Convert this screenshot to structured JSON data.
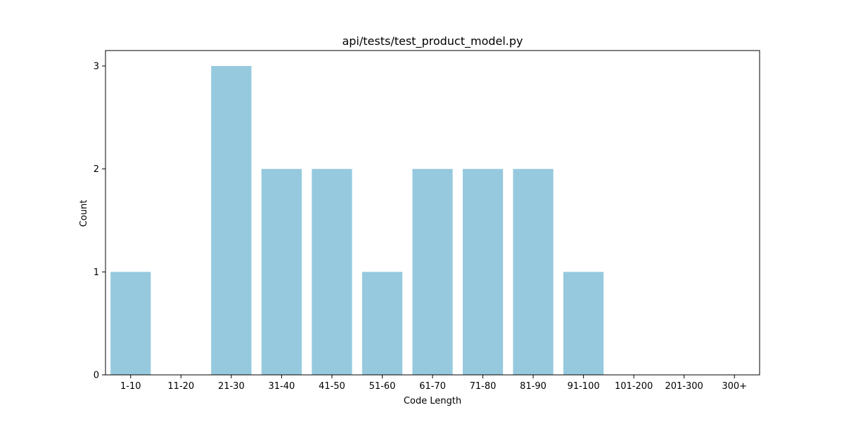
{
  "chart_data": {
    "type": "bar",
    "title": "api/tests/test_product_model.py",
    "xlabel": "Code Length",
    "ylabel": "Count",
    "categories": [
      "1-10",
      "11-20",
      "21-30",
      "31-40",
      "41-50",
      "51-60",
      "61-70",
      "71-80",
      "81-90",
      "91-100",
      "101-200",
      "201-300",
      "300+"
    ],
    "values": [
      1,
      0,
      3,
      2,
      2,
      1,
      2,
      2,
      2,
      1,
      0,
      0,
      0
    ],
    "ylim": [
      0,
      3.15
    ],
    "yticks": [
      0,
      1,
      2,
      3
    ],
    "grid": false,
    "bar_color": "#96c9de"
  }
}
